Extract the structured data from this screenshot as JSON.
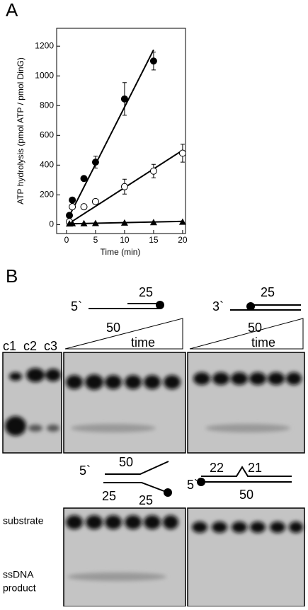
{
  "panel_a": {
    "label": "A"
  },
  "chart_data": {
    "type": "scatter",
    "x_label": "Time (min)",
    "y_label": "ATP hydrolysis (pmol ATP / pmol DinG)",
    "xlim": [
      -1.7,
      20.5
    ],
    "ylim": [
      -60,
      1320
    ],
    "xticks": [
      0,
      5,
      10,
      15,
      20
    ],
    "yticks": [
      0,
      200,
      400,
      600,
      800,
      1000,
      1200
    ],
    "series": [
      {
        "marker": "filled-circle",
        "color": "#000000",
        "x": [
          0.5,
          1,
          3,
          5,
          10,
          15
        ],
        "values": [
          62,
          165,
          310,
          420,
          845,
          1100
        ],
        "errors": [
          null,
          null,
          null,
          40,
          110,
          60
        ]
      },
      {
        "marker": "open-circle",
        "color": "#000000",
        "x": [
          0.5,
          1,
          3,
          5,
          10,
          15,
          20
        ],
        "values": [
          20,
          120,
          120,
          155,
          255,
          360,
          480
        ],
        "errors": [
          null,
          15,
          15,
          15,
          50,
          45,
          60
        ]
      },
      {
        "marker": "triangle",
        "color": "#000000",
        "x": [
          0.5,
          1,
          3,
          5,
          10,
          15,
          20
        ],
        "values": [
          6,
          8,
          8,
          9,
          12,
          15,
          18
        ],
        "errors": [
          null,
          null,
          null,
          null,
          null,
          null,
          null
        ]
      }
    ],
    "fits": [
      {
        "x": [
          0.5,
          15
        ],
        "y": [
          60,
          1175
        ]
      },
      {
        "x": [
          0.5,
          20
        ],
        "y": [
          10,
          500
        ]
      },
      {
        "x": [
          0,
          20
        ],
        "y": [
          5,
          22
        ]
      }
    ]
  },
  "panel_b": {
    "label": "B",
    "diagram_1": {
      "end": "5`",
      "top": "25",
      "bottom": "50"
    },
    "diagram_2": {
      "end": "3`",
      "top": "25",
      "bottom": "50"
    },
    "controls": [
      "c1",
      "c2",
      "c3"
    ],
    "time_1": "time",
    "time_2": "time",
    "diagram_3": {
      "end": "5`",
      "top": "50",
      "left": "25",
      "right": "25"
    },
    "diagram_4": {
      "end": "5`",
      "top_left": "22",
      "top_right": "21",
      "bottom": "50"
    },
    "row_labels": {
      "substrate": "substrate",
      "product_1": "ssDNA",
      "product_2": "product"
    }
  }
}
